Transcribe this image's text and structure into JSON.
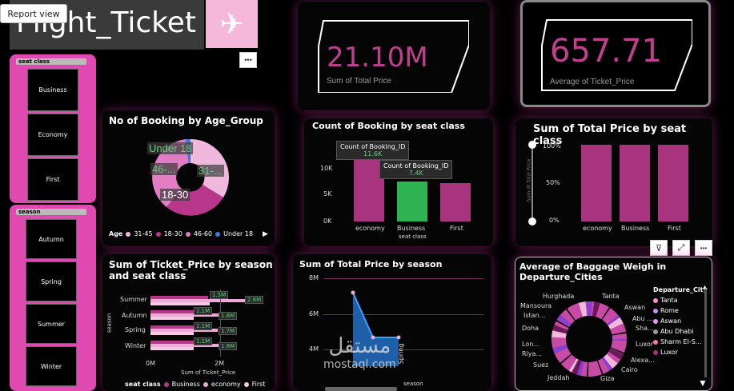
{
  "header": {
    "title": "Flight_Ticket",
    "report_view_label": "Report view",
    "more_label": "•••"
  },
  "kpis": [
    {
      "value": "21.10M",
      "label": "Sum of Total Price"
    },
    {
      "value": "657.71",
      "label": "Average of Ticket_Price"
    }
  ],
  "slicers": {
    "seat_class": {
      "title": "seat class",
      "items": [
        "Business",
        "Economy",
        "First"
      ]
    },
    "season": {
      "title": "season",
      "items": [
        "Autumn",
        "Spring",
        "Summer",
        "Winter"
      ]
    }
  },
  "age_chart": {
    "title": "No of Booking by Age_Group",
    "legend_title": "Age",
    "labels": [
      "Under 18",
      "46-...",
      "31-...",
      "18-30"
    ],
    "legend": [
      "31-45",
      "18-30",
      "46-60",
      "Under 18"
    ]
  },
  "seat_count_chart": {
    "title": "Count of Booking by seat class",
    "y_ticks": [
      "10K",
      "5K",
      "0K"
    ],
    "x_label": "seat class",
    "categories": [
      "economy",
      "Business",
      "First"
    ],
    "tooltip1": {
      "label": "Count of Booking_ID",
      "value": "11.6K"
    },
    "tooltip2": {
      "label": "Count of Booking_ID",
      "value": "7.4K"
    }
  },
  "price_seat_chart": {
    "title": "Sum of Total Price by seat class",
    "y_ticks": [
      "100%",
      "50%",
      "0%"
    ],
    "y_label": "Sum of Total Price",
    "categories": [
      "economy",
      "Business",
      "First"
    ]
  },
  "ticket_season_chart": {
    "title_line1": "Sum of Ticket_Price by season",
    "title_line2": "and seat class",
    "y_label": "season",
    "x_label": "Sum of Ticket_Price",
    "x_ticks": [
      "0M",
      "2M"
    ],
    "seasons": [
      "Summer",
      "Autumn",
      "Spring",
      "Winter"
    ],
    "value_labels": [
      [
        "1.5M",
        "2.8M"
      ],
      [
        "1.1M",
        "1.8M"
      ],
      [
        "1.1M",
        "1.7M"
      ],
      [
        "1.1M",
        "1.8M"
      ]
    ],
    "legend_title": "seat class",
    "legend": [
      "Business",
      "economy",
      "First"
    ]
  },
  "price_season_chart": {
    "title": "Sum of Total Price by season",
    "y_ticks": [
      "8M",
      "6M",
      "4M"
    ],
    "x_label": "season",
    "x_category": "Spring"
  },
  "baggage_chart": {
    "title_line1": "Average of Baggage Weigh in",
    "title_line2": "Departure_Cities",
    "legend_title": "Departure_City",
    "legend": [
      "Tanta",
      "Rome",
      "Aswan",
      "Abu Dhabi",
      "Sharm El-S...",
      "Luxor"
    ],
    "legend_colors": [
      "#ff8fd0",
      "#c98ff0",
      "#e0a0f0",
      "#9a9a9a",
      "#ff6fb0",
      "#b0307a"
    ],
    "labels": [
      "Hurghada",
      "Tanta",
      "Aswan",
      "Abu ...",
      "Sha...",
      "Luxor",
      "Alexa...",
      "Cairo",
      "Giza",
      "Jeddah",
      "Suez",
      "Riya...",
      "Lon...",
      "Doha",
      "Istan...",
      "Mansoura"
    ]
  },
  "watermark": {
    "arabic": "مستقل",
    "latin": "mostaql.com"
  }
}
